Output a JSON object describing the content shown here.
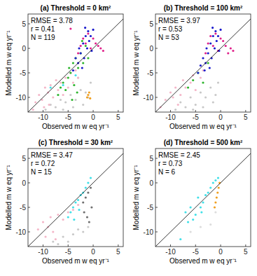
{
  "chart_data": [
    {
      "type": "scatter",
      "title": "(a) Threshold = 0 km²",
      "x_label": "Observed  m w eq yr⁻¹",
      "y_label": "Modelled m w eq yr⁻¹",
      "annotations": [
        "RMSE = 3.78",
        "r = 0.41",
        "N = 119"
      ],
      "xlim": [
        -13,
        6
      ],
      "ylim": [
        -13,
        7
      ],
      "xticks": [
        -10,
        -5,
        0,
        5
      ],
      "yticks": [
        -10,
        -5,
        0,
        5
      ],
      "series": [
        {
          "color": "#c8c8c8",
          "marker": "circle",
          "x": [
            -9.5,
            -8.5,
            -7.5,
            -6.5,
            -5.5,
            -4.5,
            -3.5,
            -2.5,
            -1.5,
            -0.5,
            -6.0,
            -4.0,
            -2.0,
            -1.0,
            -3.0
          ],
          "values": [
            -12.5,
            -11.5,
            -12.0,
            -10.5,
            -11.0,
            -9.5,
            -10.5,
            -8.5,
            -9.0,
            -7.0,
            -12.5,
            -12.0,
            -11.5,
            -10.0,
            -6.0
          ]
        },
        {
          "color": "#f4b6c8",
          "marker": "circle",
          "x": [
            -11.5,
            -10.8,
            -10.2,
            -9.6,
            -9.0,
            -8.5,
            -8.0,
            -7.4,
            -7.0,
            -6.5,
            -6.0,
            -5.5,
            -5.0,
            -4.5,
            -4.0,
            -3.5,
            -3.0,
            -12.0,
            -9.8,
            -8.8
          ],
          "values": [
            -11.0,
            -9.5,
            -10.5,
            -8.0,
            -9.0,
            -7.5,
            -10.0,
            -6.5,
            -8.5,
            -7.0,
            -9.5,
            -6.0,
            -8.0,
            -5.0,
            -7.0,
            -4.5,
            -6.0,
            -12.5,
            -12.0,
            -11.5
          ]
        },
        {
          "color": "#40e0e8",
          "marker": "circle",
          "x": [
            -8.5,
            -6.0,
            -3.5
          ],
          "values": [
            -8.0,
            -7.5,
            -5.5
          ]
        },
        {
          "color": "#2db52d",
          "marker": "circle",
          "x": [
            -7.0,
            -6.5,
            -6.0,
            -5.5,
            -5.0,
            -4.8,
            -4.5,
            -4.0,
            -3.8,
            -3.5,
            -3.0,
            -2.5,
            -2.0,
            -1.5,
            -1.0,
            -4.2,
            -3.2,
            -2.2
          ],
          "values": [
            -9.5,
            -8.0,
            -7.0,
            -8.5,
            -6.0,
            -4.0,
            -5.0,
            -3.0,
            -7.5,
            -2.0,
            -4.0,
            -1.0,
            -3.0,
            0.5,
            -2.0,
            -10.5,
            -9.0,
            1.5
          ]
        },
        {
          "color": "#f0a020",
          "marker": "circle",
          "x": [
            -1.2,
            -1.0,
            -0.8,
            -0.6
          ],
          "values": [
            -10.0,
            -9.5,
            -9.0,
            -10.2
          ]
        },
        {
          "color": "#e0208a",
          "marker": "circle",
          "x": [
            -3.0,
            -2.5,
            -2.0,
            -1.5,
            -1.0,
            -0.5,
            0.0,
            0.5,
            1.0,
            1.5,
            2.0,
            -4.5
          ],
          "values": [
            -1.0,
            0.5,
            2.0,
            1.0,
            3.0,
            0.0,
            2.0,
            1.0,
            0.5,
            0.0,
            -0.5,
            4.0
          ]
        },
        {
          "color": "#1a1acc",
          "marker": "circle",
          "x": [
            -4.0,
            -3.5,
            -3.0,
            -2.8,
            -2.5,
            -2.0,
            -1.8,
            -1.5,
            -1.2,
            -1.0,
            -0.8,
            -0.5,
            -0.3,
            0.0,
            -2.2,
            -1.6
          ],
          "values": [
            -4.5,
            -2.0,
            -3.0,
            0.0,
            -1.0,
            1.0,
            -2.0,
            2.5,
            0.0,
            3.5,
            1.5,
            2.5,
            -0.5,
            3.8,
            -4.0,
            4.2
          ]
        },
        {
          "type": "line",
          "color": "#000000",
          "line_style": "solid",
          "x": [
            -13,
            6
          ],
          "values": [
            -13,
            6
          ]
        }
      ]
    },
    {
      "type": "scatter",
      "title": "(b) Threshold = 100 km²",
      "x_label": "Observed  m w eq yr⁻¹",
      "y_label": "Modelled m w eq yr⁻¹",
      "annotations": [
        "RMSE = 3.97",
        "r = 0.53",
        "N = 53"
      ],
      "xlim": [
        -13,
        6
      ],
      "ylim": [
        -13,
        7
      ],
      "xticks": [
        -10,
        -5,
        0,
        5
      ],
      "yticks": [
        -10,
        -5,
        0,
        5
      ],
      "series": [
        {
          "color": "#c8c8c8",
          "marker": "circle",
          "x": [
            -9.0,
            -8.0,
            -7.0,
            -6.0,
            -5.0,
            -4.0,
            -3.0,
            -2.0,
            -1.0,
            -0.5,
            -5.5,
            -3.5,
            -1.5
          ],
          "values": [
            -12.5,
            -11.0,
            -12.0,
            -10.0,
            -11.5,
            -9.0,
            -10.0,
            -8.0,
            -9.5,
            -7.0,
            -12.5,
            -12.0,
            -11.0
          ]
        },
        {
          "color": "#f4b6c8",
          "marker": "circle",
          "x": [
            -11.0,
            -10.0,
            -9.5,
            -9.0,
            -8.0,
            -7.5,
            -7.0,
            -6.0,
            -5.5,
            -5.0,
            -4.0,
            -3.5,
            -12.0,
            -8.5
          ],
          "values": [
            -10.5,
            -9.0,
            -10.0,
            -8.0,
            -9.5,
            -6.5,
            -8.0,
            -7.0,
            -5.5,
            -8.5,
            -6.0,
            -4.5,
            -12.0,
            -11.5
          ]
        },
        {
          "color": "#2db52d",
          "marker": "circle",
          "x": [
            -6.5,
            -5.5,
            -4.5,
            -3.5,
            -2.5
          ],
          "values": [
            -8.0,
            -6.5,
            -5.0,
            -7.0,
            -3.0
          ]
        },
        {
          "color": "#e0208a",
          "marker": "circle",
          "x": [
            -3.0,
            -2.5,
            -2.0,
            -1.5,
            -1.0,
            -0.5,
            0.0,
            0.5,
            1.0,
            1.5,
            2.0,
            2.5
          ],
          "values": [
            -1.0,
            1.0,
            2.5,
            0.5,
            3.0,
            -0.5,
            2.0,
            1.5,
            0.5,
            -1.0,
            0.0,
            -0.5
          ]
        },
        {
          "color": "#1a1acc",
          "marker": "circle",
          "x": [
            -4.5,
            -4.0,
            -3.5,
            -3.0,
            -2.8,
            -2.5,
            -2.0,
            -1.8,
            -1.5,
            -1.2,
            -1.0,
            -0.8,
            -0.5,
            -0.3,
            0.0,
            -2.2,
            -1.6,
            -3.2
          ],
          "values": [
            -5.0,
            -3.5,
            -2.0,
            -3.0,
            0.0,
            -1.0,
            1.0,
            -2.0,
            2.5,
            0.0,
            3.5,
            1.5,
            2.5,
            -0.5,
            3.8,
            -4.0,
            4.2,
            -4.5
          ]
        },
        {
          "type": "line",
          "color": "#000000",
          "line_style": "solid",
          "x": [
            -13,
            6
          ],
          "values": [
            -13,
            6
          ]
        }
      ]
    },
    {
      "type": "scatter",
      "title": "(c) Threshold = 30 km²",
      "x_label": "Observed  m w eq yr⁻¹",
      "y_label": "Modelled m w eq yr⁻¹",
      "annotations": [
        "RMSE = 3.47",
        "r = 0.72",
        "N = 15"
      ],
      "xlim": [
        -13,
        6
      ],
      "ylim": [
        -13,
        7
      ],
      "xticks": [
        -10,
        -5,
        0,
        5
      ],
      "yticks": [
        -10,
        -5,
        0,
        5
      ],
      "series": [
        {
          "color": "#c8c8c8",
          "marker": "circle",
          "x": [
            -8.0,
            -6.0,
            -4.0,
            -3.0,
            -2.0,
            -1.0,
            -5.0,
            -7.0
          ],
          "values": [
            -12.0,
            -11.0,
            -10.5,
            -9.5,
            -10.0,
            -9.0,
            -12.0,
            -12.5
          ]
        },
        {
          "color": "#f4b6c8",
          "marker": "circle",
          "x": [
            -11.0,
            -10.0,
            -9.0,
            -8.5,
            -8.0,
            -7.0,
            -6.0,
            -5.0,
            -4.0,
            -3.0,
            -9.5,
            -7.5
          ],
          "values": [
            -9.5,
            -8.0,
            -9.0,
            -7.0,
            -10.0,
            -6.5,
            -7.5,
            -6.0,
            -5.5,
            -4.5,
            -11.0,
            -11.5
          ]
        },
        {
          "color": "#707070",
          "marker": "circle",
          "x": [
            -2.0,
            -1.8,
            -1.5,
            -1.2,
            -1.0,
            -0.8,
            -0.5,
            -0.3
          ],
          "values": [
            -4.0,
            -6.0,
            -3.0,
            -7.0,
            -2.0,
            -8.0,
            -1.0,
            -5.0
          ]
        },
        {
          "color": "#40e0e8",
          "marker": "circle",
          "x": [
            -5.0,
            -4.5,
            -4.0,
            -3.5,
            -3.0,
            -2.5,
            -2.0,
            -1.5,
            -1.0,
            -0.5,
            -3.8,
            -2.8
          ],
          "values": [
            -7.0,
            -6.0,
            -5.0,
            -4.0,
            -3.5,
            -2.5,
            -2.0,
            -1.0,
            0.0,
            1.0,
            -7.5,
            -5.5
          ]
        },
        {
          "type": "line",
          "color": "#000000",
          "line_style": "solid",
          "x": [
            -13,
            6
          ],
          "values": [
            -13,
            6
          ]
        }
      ]
    },
    {
      "type": "scatter",
      "title": "(d) Threshold = 500 km²",
      "x_label": "Observed  m w eq yr⁻¹",
      "y_label": "Modelled m w eq yr⁻¹",
      "annotations": [
        "RMSE = 2.45",
        "r = 0.73",
        "N = 6"
      ],
      "xlim": [
        -13,
        6
      ],
      "ylim": [
        -13,
        7
      ],
      "xticks": [
        -10,
        -5,
        0,
        5
      ],
      "yticks": [
        -10,
        -5,
        0,
        5
      ],
      "series": [
        {
          "color": "#dcdcdc",
          "marker": "circle",
          "x": [
            -6.0,
            -4.0,
            -2.0,
            -1.0
          ],
          "values": [
            -10.0,
            -9.0,
            -8.5,
            -6.0
          ]
        },
        {
          "color": "#40e0e8",
          "marker": "circle",
          "x": [
            -8.0,
            -7.0,
            -6.5,
            -6.0,
            -5.0,
            -4.5,
            -4.0,
            -3.5,
            -3.0,
            -2.5,
            -2.0,
            -1.5,
            -1.0,
            -0.5,
            -5.5,
            -3.8
          ],
          "values": [
            -11.5,
            -6.0,
            -8.0,
            -5.0,
            -6.5,
            -3.0,
            -5.0,
            -4.0,
            -2.5,
            -2.0,
            -1.0,
            0.0,
            0.5,
            1.0,
            -7.5,
            -6.0
          ]
        },
        {
          "color": "#f0a020",
          "marker": "circle",
          "x": [
            -1.2,
            -1.0,
            -0.8,
            -0.6,
            -0.4,
            -0.2
          ],
          "values": [
            -5.0,
            -4.0,
            -3.0,
            -2.0,
            -1.0,
            0.0
          ]
        },
        {
          "type": "line",
          "color": "#000000",
          "line_style": "solid",
          "x": [
            -13,
            6
          ],
          "values": [
            -13,
            6
          ]
        }
      ]
    }
  ]
}
